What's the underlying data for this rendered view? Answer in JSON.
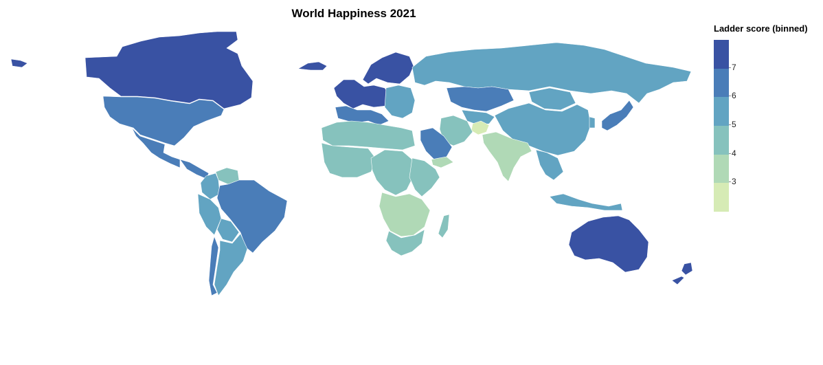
{
  "title": "World Happiness 2021",
  "legend": {
    "title": "Ladder score (binned)",
    "bins": [
      {
        "min": 7,
        "max": 8,
        "color": "#3952a3"
      },
      {
        "min": 6,
        "max": 7,
        "color": "#4a7db8"
      },
      {
        "min": 5,
        "max": 6,
        "color": "#62a4c2"
      },
      {
        "min": 4,
        "max": 5,
        "color": "#86c2bd"
      },
      {
        "min": 3,
        "max": 4,
        "color": "#b0d9b6"
      },
      {
        "min": 2,
        "max": 3,
        "color": "#d6ebb5"
      }
    ],
    "ticks": [
      "7",
      "6",
      "5",
      "4",
      "3"
    ]
  },
  "regions": [
    {
      "name": "Canada",
      "score_bin": 7
    },
    {
      "name": "United States",
      "score_bin": 6
    },
    {
      "name": "Mexico",
      "score_bin": 6
    },
    {
      "name": "Central America",
      "score_bin": 6
    },
    {
      "name": "Venezuela",
      "score_bin": 4
    },
    {
      "name": "Colombia",
      "score_bin": 5
    },
    {
      "name": "Brazil",
      "score_bin": 6
    },
    {
      "name": "Peru",
      "score_bin": 5
    },
    {
      "name": "Bolivia",
      "score_bin": 5
    },
    {
      "name": "Argentina",
      "score_bin": 5
    },
    {
      "name": "Chile",
      "score_bin": 6
    },
    {
      "name": "Greenland",
      "score_bin": 7
    },
    {
      "name": "Iceland",
      "score_bin": 7
    },
    {
      "name": "Nordic countries",
      "score_bin": 7
    },
    {
      "name": "Western Europe",
      "score_bin": 7
    },
    {
      "name": "Southern Europe",
      "score_bin": 6
    },
    {
      "name": "Eastern Europe",
      "score_bin": 5
    },
    {
      "name": "Russia",
      "score_bin": 5
    },
    {
      "name": "Kazakhstan",
      "score_bin": 6
    },
    {
      "name": "Central Asia",
      "score_bin": 5
    },
    {
      "name": "China",
      "score_bin": 5
    },
    {
      "name": "Mongolia",
      "score_bin": 5
    },
    {
      "name": "Japan",
      "score_bin": 6
    },
    {
      "name": "South Korea",
      "score_bin": 5
    },
    {
      "name": "Afghanistan",
      "score_bin": 2
    },
    {
      "name": "Iran",
      "score_bin": 4
    },
    {
      "name": "Saudi Arabia",
      "score_bin": 6
    },
    {
      "name": "Yemen",
      "score_bin": 3
    },
    {
      "name": "India",
      "score_bin": 3
    },
    {
      "name": "Southeast Asia",
      "score_bin": 5
    },
    {
      "name": "Indonesia",
      "score_bin": 5
    },
    {
      "name": "North Africa",
      "score_bin": 4
    },
    {
      "name": "West Africa",
      "score_bin": 4
    },
    {
      "name": "Central Africa",
      "score_bin": 4
    },
    {
      "name": "East Africa",
      "score_bin": 4
    },
    {
      "name": "Southern Africa",
      "score_bin": 3
    },
    {
      "name": "South Africa",
      "score_bin": 4
    },
    {
      "name": "Madagascar",
      "score_bin": 4
    },
    {
      "name": "Australia",
      "score_bin": 7
    },
    {
      "name": "New Zealand",
      "score_bin": 7
    }
  ]
}
